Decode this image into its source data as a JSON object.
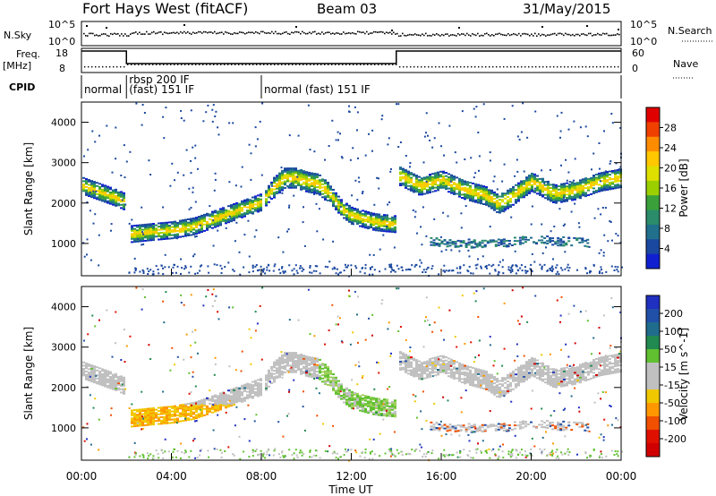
{
  "header": {
    "station": "Fort Hays West (fitACF)",
    "beam": "Beam 03",
    "date": "31/May/2015"
  },
  "strips": {
    "nsky_label": "N.Sky",
    "nsky_ticks": [
      "10^5",
      "10^0"
    ],
    "nsearch_ticks": [
      "10^5",
      "10^0"
    ],
    "nsearch_label": "N.Search",
    "freq_label_1": "Freq.",
    "freq_label_2": "[MHz]",
    "freq_ticks": [
      "18",
      "8"
    ],
    "nave_ticks": [
      "60",
      "0"
    ],
    "nave_label": "Nave",
    "cpid_label": "CPID",
    "cpid_segments": [
      {
        "start_h": 0.0,
        "end_h": 2.0,
        "line1": "normal",
        "line2": ""
      },
      {
        "start_h": 2.0,
        "end_h": 8.0,
        "line1": "rbsp 200 IF",
        "line2": "(fast) 151 IF"
      },
      {
        "start_h": 8.0,
        "end_h": 24.0,
        "line1": "normal (fast) 151 IF",
        "line2": ""
      }
    ]
  },
  "colorbars": {
    "power": {
      "title": "Power [dB]",
      "ticks": [
        "28",
        "24",
        "20",
        "16",
        "12",
        "8",
        "4"
      ],
      "colors": [
        "#e00000",
        "#f04000",
        "#ff8c00",
        "#ffc800",
        "#dfe000",
        "#9ccf00",
        "#3aa03a",
        "#2a8c6a",
        "#20708c",
        "#1a48a0",
        "#1020d0"
      ]
    },
    "velocity": {
      "title": "Velocity [m s^-1]",
      "ticks": [
        "200",
        "100",
        "50",
        "15",
        "-15",
        "-50",
        "-100",
        "-200"
      ],
      "colors": [
        "#2030c0",
        "#2050a8",
        "#206c8c",
        "#208a50",
        "#60c030",
        "#c0c0c0",
        "#c0c0c0",
        "#f0c800",
        "#ff9800",
        "#f05000",
        "#e01000",
        "#d00000"
      ]
    }
  },
  "axes": {
    "ylabel": "Slant Range [km]",
    "xlabel": "Time UT",
    "x_ticks": [
      "00:00",
      "04:00",
      "08:00",
      "12:00",
      "16:00",
      "20:00",
      "00:00"
    ],
    "y_ticks": [
      "4000",
      "3000",
      "2000",
      "1000"
    ]
  },
  "chart_data": {
    "type": "heatmap",
    "x_range_hours": [
      0,
      24
    ],
    "y_range_km": [
      200,
      4500
    ],
    "power_band_center_km": [
      [
        0.0,
        2450
      ],
      [
        0.5,
        2350
      ],
      [
        1.0,
        2250
      ],
      [
        1.5,
        2150
      ],
      [
        1.9,
        2050
      ],
      [
        2.1,
        1250
      ],
      [
        3.0,
        1300
      ],
      [
        4.0,
        1350
      ],
      [
        5.0,
        1450
      ],
      [
        6.0,
        1650
      ],
      [
        7.0,
        1850
      ],
      [
        7.5,
        1950
      ],
      [
        8.0,
        2050
      ],
      [
        8.5,
        2400
      ],
      [
        9.0,
        2650
      ],
      [
        9.5,
        2650
      ],
      [
        10.0,
        2550
      ],
      [
        10.5,
        2500
      ],
      [
        11.0,
        2250
      ],
      [
        11.5,
        1900
      ],
      [
        12.0,
        1700
      ],
      [
        13.0,
        1550
      ],
      [
        13.9,
        1500
      ],
      [
        14.1,
        2700
      ],
      [
        15.0,
        2450
      ],
      [
        16.0,
        2600
      ],
      [
        17.0,
        2350
      ],
      [
        18.0,
        2200
      ],
      [
        18.5,
        2000
      ],
      [
        19.0,
        2150
      ],
      [
        20.0,
        2550
      ],
      [
        21.0,
        2250
      ],
      [
        22.0,
        2350
      ],
      [
        23.0,
        2550
      ],
      [
        24.0,
        2650
      ]
    ],
    "lower_band": {
      "start_h": 15.5,
      "end_h": 22.5,
      "center_km": 1050
    }
  }
}
